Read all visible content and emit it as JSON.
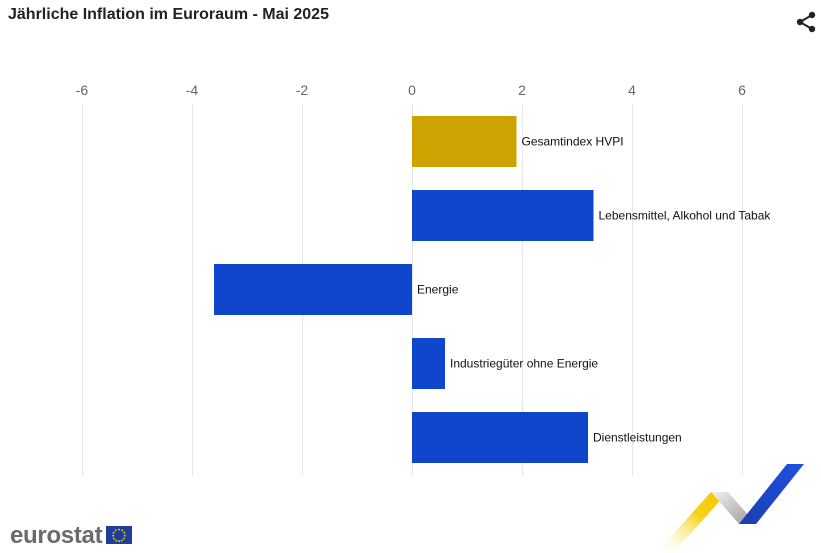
{
  "header": {
    "title": "Jährliche Inflation im Euroraum - Mai 2025"
  },
  "branding": {
    "logo_text": "eurostat"
  },
  "icons": {
    "share": "share-icon",
    "flag": "eu-flag-icon"
  },
  "colors": {
    "highlight": "#cca300",
    "bars": "#1046cc",
    "grid": "#e6e6e6",
    "tick_text": "#666666"
  },
  "chart_data": {
    "type": "bar",
    "orientation": "horizontal",
    "title": "Jährliche Inflation im Euroraum - Mai 2025",
    "xlim": [
      -7.5,
      7.5
    ],
    "xticks": [
      -6,
      -4,
      -2,
      0,
      2,
      4,
      6
    ],
    "grid": true,
    "categories": [
      "Gesamtindex HVPI",
      "Lebensmittel, Alkohol und Tabak",
      "Energie",
      "Industriegüter ohne Energie",
      "Dienstleistungen"
    ],
    "values": [
      1.9,
      3.3,
      -3.6,
      0.6,
      3.2
    ],
    "highlight_index": 0
  }
}
